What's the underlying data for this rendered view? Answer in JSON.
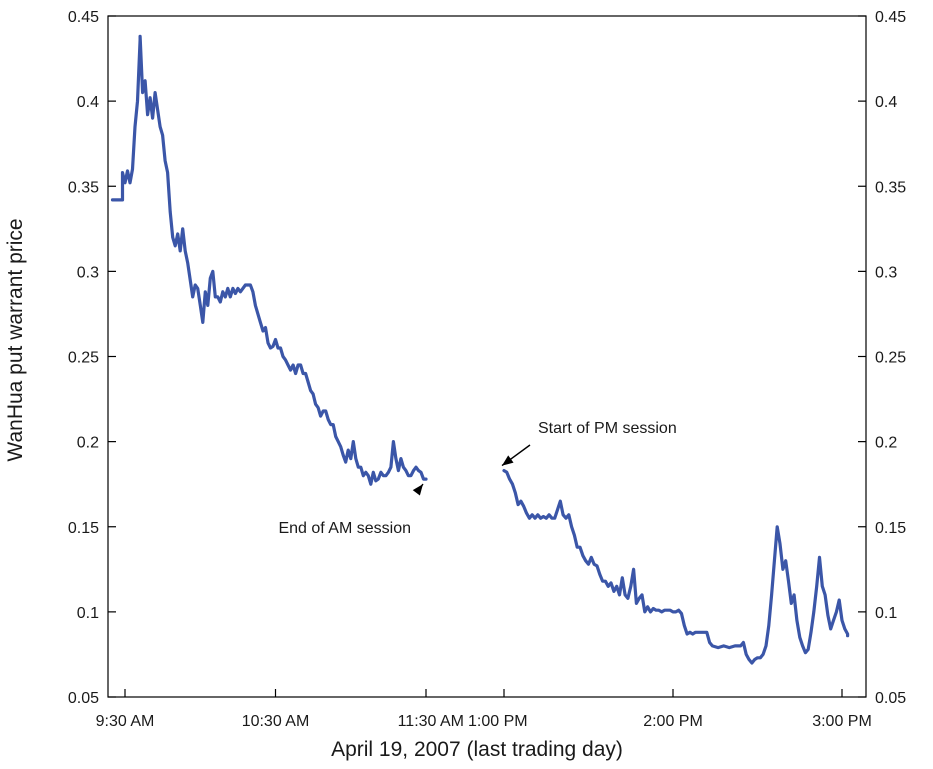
{
  "chart_data": {
    "type": "line",
    "xlabel": "April 19, 2007 (last trading day)",
    "ylabel": "WanHua put warrant price",
    "ylim": [
      0.05,
      0.45
    ],
    "yticks": [
      {
        "value": 0.05,
        "label": "0.05"
      },
      {
        "value": 0.1,
        "label": "0.1"
      },
      {
        "value": 0.15,
        "label": "0.15"
      },
      {
        "value": 0.2,
        "label": "0.2"
      },
      {
        "value": 0.25,
        "label": "0.25"
      },
      {
        "value": 0.3,
        "label": "0.3"
      },
      {
        "value": 0.35,
        "label": "0.35"
      },
      {
        "value": 0.4,
        "label": "0.4"
      },
      {
        "value": 0.45,
        "label": "0.45"
      }
    ],
    "xticks": [
      {
        "time": "09:30",
        "label": "9:30 AM"
      },
      {
        "time": "10:30",
        "label": "10:30 AM"
      },
      {
        "time": "11:30",
        "label": "11:30 AM"
      },
      {
        "time": "13:00",
        "label": "1:00 PM"
      },
      {
        "time": "14:00",
        "label": "2:00 PM"
      },
      {
        "time": "15:00",
        "label": "3:00 PM"
      }
    ],
    "grid": false,
    "legend": "none",
    "color": "#3b56a8",
    "annotations": [
      {
        "text": "End of AM session",
        "time": "11:30",
        "value": 0.178
      },
      {
        "text": "Start of PM session",
        "time": "13:00",
        "value": 0.183
      }
    ],
    "series": [
      {
        "segments": [
          [
            [
              "09:25",
              0.342
            ],
            [
              "09:29",
              0.342
            ],
            [
              "09:29",
              0.358
            ],
            [
              "09:30",
              0.352
            ],
            [
              "09:31",
              0.359
            ],
            [
              "09:32",
              0.352
            ],
            [
              "09:33",
              0.36
            ],
            [
              "09:34",
              0.385
            ],
            [
              "09:35",
              0.4
            ],
            [
              "09:36",
              0.436
            ],
            [
              "09:36",
              0.438
            ],
            [
              "09:37",
              0.405
            ],
            [
              "09:38",
              0.412
            ],
            [
              "09:39",
              0.392
            ],
            [
              "09:40",
              0.402
            ],
            [
              "09:41",
              0.39
            ],
            [
              "09:42",
              0.405
            ],
            [
              "09:43",
              0.395
            ],
            [
              "09:44",
              0.385
            ],
            [
              "09:45",
              0.38
            ],
            [
              "09:46",
              0.365
            ],
            [
              "09:47",
              0.358
            ],
            [
              "09:48",
              0.335
            ],
            [
              "09:49",
              0.32
            ],
            [
              "09:50",
              0.315
            ],
            [
              "09:51",
              0.322
            ],
            [
              "09:52",
              0.312
            ],
            [
              "09:53",
              0.325
            ],
            [
              "09:54",
              0.312
            ],
            [
              "09:55",
              0.305
            ],
            [
              "09:56",
              0.295
            ],
            [
              "09:57",
              0.285
            ],
            [
              "09:58",
              0.292
            ],
            [
              "09:59",
              0.29
            ],
            [
              "10:00",
              0.28
            ],
            [
              "10:01",
              0.27
            ],
            [
              "10:02",
              0.288
            ],
            [
              "10:03",
              0.28
            ],
            [
              "10:04",
              0.296
            ],
            [
              "10:05",
              0.3
            ],
            [
              "10:06",
              0.285
            ],
            [
              "10:07",
              0.285
            ],
            [
              "10:08",
              0.282
            ],
            [
              "10:09",
              0.288
            ],
            [
              "10:10",
              0.285
            ],
            [
              "10:11",
              0.29
            ],
            [
              "10:12",
              0.285
            ],
            [
              "10:13",
              0.29
            ],
            [
              "10:14",
              0.287
            ],
            [
              "10:15",
              0.29
            ],
            [
              "10:16",
              0.288
            ],
            [
              "10:18",
              0.292
            ],
            [
              "10:20",
              0.292
            ],
            [
              "10:21",
              0.288
            ],
            [
              "10:22",
              0.28
            ],
            [
              "10:23",
              0.275
            ],
            [
              "10:24",
              0.27
            ],
            [
              "10:25",
              0.265
            ],
            [
              "10:26",
              0.267
            ],
            [
              "10:27",
              0.258
            ],
            [
              "10:28",
              0.255
            ],
            [
              "10:29",
              0.256
            ],
            [
              "10:30",
              0.26
            ],
            [
              "10:31",
              0.255
            ],
            [
              "10:32",
              0.255
            ],
            [
              "10:33",
              0.25
            ],
            [
              "10:34",
              0.248
            ],
            [
              "10:35",
              0.245
            ],
            [
              "10:36",
              0.242
            ],
            [
              "10:37",
              0.245
            ],
            [
              "10:38",
              0.24
            ],
            [
              "10:39",
              0.245
            ],
            [
              "10:40",
              0.245
            ],
            [
              "10:41",
              0.24
            ],
            [
              "10:42",
              0.24
            ],
            [
              "10:43",
              0.235
            ],
            [
              "10:44",
              0.23
            ],
            [
              "10:45",
              0.228
            ],
            [
              "10:46",
              0.222
            ],
            [
              "10:47",
              0.22
            ],
            [
              "10:48",
              0.215
            ],
            [
              "10:49",
              0.218
            ],
            [
              "10:50",
              0.218
            ],
            [
              "10:51",
              0.213
            ],
            [
              "10:52",
              0.21
            ],
            [
              "10:53",
              0.21
            ],
            [
              "10:54",
              0.203
            ],
            [
              "10:55",
              0.2
            ],
            [
              "10:56",
              0.197
            ],
            [
              "10:57",
              0.192
            ],
            [
              "10:58",
              0.188
            ],
            [
              "10:59",
              0.195
            ],
            [
              "11:00",
              0.19
            ],
            [
              "11:01",
              0.2
            ],
            [
              "11:02",
              0.19
            ],
            [
              "11:03",
              0.185
            ],
            [
              "11:04",
              0.185
            ],
            [
              "11:05",
              0.18
            ],
            [
              "11:06",
              0.182
            ],
            [
              "11:07",
              0.18
            ],
            [
              "11:08",
              0.175
            ],
            [
              "11:09",
              0.182
            ],
            [
              "11:10",
              0.177
            ],
            [
              "11:11",
              0.178
            ],
            [
              "11:12",
              0.182
            ],
            [
              "11:13",
              0.18
            ],
            [
              "11:14",
              0.18
            ],
            [
              "11:15",
              0.182
            ],
            [
              "11:16",
              0.185
            ],
            [
              "11:17",
              0.2
            ],
            [
              "11:18",
              0.19
            ],
            [
              "11:19",
              0.183
            ],
            [
              "11:20",
              0.19
            ],
            [
              "11:21",
              0.185
            ],
            [
              "11:22",
              0.183
            ],
            [
              "11:23",
              0.18
            ],
            [
              "11:24",
              0.18
            ],
            [
              "11:25",
              0.183
            ],
            [
              "11:26",
              0.185
            ],
            [
              "11:27",
              0.183
            ],
            [
              "11:28",
              0.182
            ],
            [
              "11:29",
              0.178
            ],
            [
              "11:30",
              0.178
            ]
          ],
          [
            [
              "13:00",
              0.183
            ],
            [
              "13:01",
              0.182
            ],
            [
              "13:02",
              0.178
            ],
            [
              "13:03",
              0.175
            ],
            [
              "13:04",
              0.17
            ],
            [
              "13:05",
              0.163
            ],
            [
              "13:06",
              0.165
            ],
            [
              "13:07",
              0.162
            ],
            [
              "13:08",
              0.158
            ],
            [
              "13:09",
              0.155
            ],
            [
              "13:10",
              0.157
            ],
            [
              "13:11",
              0.155
            ],
            [
              "13:12",
              0.157
            ],
            [
              "13:13",
              0.155
            ],
            [
              "13:14",
              0.156
            ],
            [
              "13:15",
              0.155
            ],
            [
              "13:16",
              0.157
            ],
            [
              "13:17",
              0.155
            ],
            [
              "13:18",
              0.155
            ],
            [
              "13:19",
              0.16
            ],
            [
              "13:20",
              0.165
            ],
            [
              "13:21",
              0.157
            ],
            [
              "13:22",
              0.155
            ],
            [
              "13:23",
              0.157
            ],
            [
              "13:24",
              0.15
            ],
            [
              "13:25",
              0.145
            ],
            [
              "13:26",
              0.138
            ],
            [
              "13:27",
              0.138
            ],
            [
              "13:28",
              0.133
            ],
            [
              "13:29",
              0.13
            ],
            [
              "13:30",
              0.128
            ],
            [
              "13:31",
              0.132
            ],
            [
              "13:32",
              0.128
            ],
            [
              "13:33",
              0.127
            ],
            [
              "13:34",
              0.122
            ],
            [
              "13:35",
              0.118
            ],
            [
              "13:36",
              0.118
            ],
            [
              "13:37",
              0.115
            ],
            [
              "13:38",
              0.117
            ],
            [
              "13:39",
              0.112
            ],
            [
              "13:40",
              0.115
            ],
            [
              "13:41",
              0.11
            ],
            [
              "13:42",
              0.12
            ],
            [
              "13:43",
              0.11
            ],
            [
              "13:44",
              0.108
            ],
            [
              "13:45",
              0.115
            ],
            [
              "13:46",
              0.125
            ],
            [
              "13:47",
              0.105
            ],
            [
              "13:48",
              0.108
            ],
            [
              "13:49",
              0.11
            ],
            [
              "13:50",
              0.1
            ],
            [
              "13:51",
              0.103
            ],
            [
              "13:52",
              0.1
            ],
            [
              "13:53",
              0.102
            ],
            [
              "13:54",
              0.101
            ],
            [
              "13:55",
              0.101
            ],
            [
              "13:56",
              0.1
            ],
            [
              "13:57",
              0.101
            ],
            [
              "13:58",
              0.101
            ],
            [
              "13:59",
              0.101
            ],
            [
              "14:00",
              0.1
            ],
            [
              "14:01",
              0.1
            ],
            [
              "14:02",
              0.101
            ],
            [
              "14:03",
              0.099
            ],
            [
              "14:04",
              0.092
            ],
            [
              "14:05",
              0.087
            ],
            [
              "14:06",
              0.088
            ],
            [
              "14:07",
              0.087
            ],
            [
              "14:08",
              0.088
            ],
            [
              "14:10",
              0.088
            ],
            [
              "14:12",
              0.088
            ],
            [
              "14:13",
              0.082
            ],
            [
              "14:14",
              0.08
            ],
            [
              "14:16",
              0.079
            ],
            [
              "14:18",
              0.08
            ],
            [
              "14:20",
              0.079
            ],
            [
              "14:22",
              0.08
            ],
            [
              "14:24",
              0.08
            ],
            [
              "14:25",
              0.082
            ],
            [
              "14:26",
              0.075
            ],
            [
              "14:27",
              0.072
            ],
            [
              "14:28",
              0.07
            ],
            [
              "14:29",
              0.072
            ],
            [
              "14:30",
              0.073
            ],
            [
              "14:31",
              0.073
            ],
            [
              "14:32",
              0.075
            ],
            [
              "14:33",
              0.08
            ],
            [
              "14:34",
              0.092
            ],
            [
              "14:35",
              0.11
            ],
            [
              "14:36",
              0.13
            ],
            [
              "14:37",
              0.15
            ],
            [
              "14:38",
              0.14
            ],
            [
              "14:39",
              0.125
            ],
            [
              "14:40",
              0.13
            ],
            [
              "14:41",
              0.118
            ],
            [
              "14:42",
              0.105
            ],
            [
              "14:43",
              0.11
            ],
            [
              "14:44",
              0.095
            ],
            [
              "14:45",
              0.085
            ],
            [
              "14:46",
              0.08
            ],
            [
              "14:47",
              0.076
            ],
            [
              "14:48",
              0.078
            ],
            [
              "14:49",
              0.088
            ],
            [
              "14:50",
              0.1
            ],
            [
              "14:51",
              0.115
            ],
            [
              "14:52",
              0.132
            ],
            [
              "14:53",
              0.115
            ],
            [
              "14:54",
              0.11
            ],
            [
              "14:55",
              0.098
            ],
            [
              "14:56",
              0.09
            ],
            [
              "14:57",
              0.095
            ],
            [
              "14:58",
              0.1
            ],
            [
              "14:59",
              0.107
            ],
            [
              "15:00",
              0.095
            ],
            [
              "15:01",
              0.09
            ],
            [
              "15:02",
              0.087
            ],
            [
              "15:02",
              0.086
            ]
          ]
        ]
      }
    ]
  }
}
